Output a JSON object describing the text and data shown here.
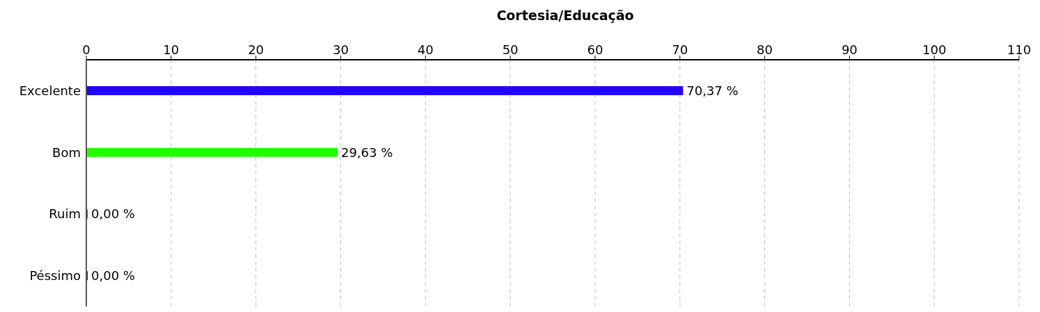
{
  "chart_data": {
    "type": "bar",
    "orientation": "horizontal",
    "title": "Cortesia/Educação",
    "categories": [
      "Excelente",
      "Bom",
      "Ruim",
      "Péssimo"
    ],
    "values": [
      70.37,
      29.63,
      0,
      0
    ],
    "colors": [
      "#2200ff",
      "#22ff00",
      "#ff0000",
      "#2200ff"
    ],
    "value_labels": [
      "70,37 %",
      "29,63 %",
      "0,00 %",
      "0,00 %"
    ],
    "xlim": [
      0,
      110
    ],
    "xticks": [
      0,
      10,
      20,
      30,
      40,
      50,
      60,
      70,
      80,
      90,
      100,
      110
    ],
    "grid": "x"
  }
}
